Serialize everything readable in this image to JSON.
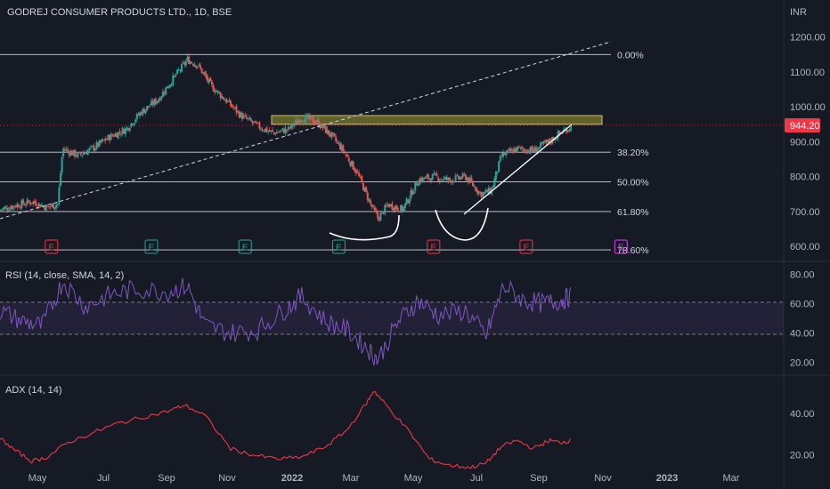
{
  "header": {
    "symbol_title": "GODREJ CONSUMER PRODUCTS LTD., 1D, BSE",
    "currency": "INR"
  },
  "price_axis": {
    "ticks": [
      "1200.00",
      "1100.00",
      "1000.00",
      "900.00",
      "800.00",
      "700.00",
      "600.00"
    ],
    "last_price_label": "944.20",
    "last_price_color": "#f23645"
  },
  "fib_levels": [
    {
      "label": "0.00%",
      "price": 1150
    },
    {
      "label": "38.20%",
      "price": 870
    },
    {
      "label": "50.00%",
      "price": 785
    },
    {
      "label": "61.80%",
      "price": 700
    },
    {
      "label": "78.60%",
      "price": 590
    }
  ],
  "resistance_zone": {
    "top": 975,
    "bottom": 950,
    "color": "#7b7a2d"
  },
  "earnings_markers": [
    {
      "label": "E",
      "date": "2021-04-29",
      "kind": "red"
    },
    {
      "label": "E",
      "date": "2021-08-04",
      "kind": "green"
    },
    {
      "label": "E",
      "date": "2021-11-03",
      "kind": "green"
    },
    {
      "label": "E",
      "date": "2022-02-02",
      "kind": "green"
    },
    {
      "label": "E",
      "date": "2022-05-05",
      "kind": "red"
    },
    {
      "label": "E",
      "date": "2022-08-03",
      "kind": "red"
    },
    {
      "label": "E",
      "date": "2022-11-03",
      "kind": "purple"
    }
  ],
  "rsi": {
    "title": "RSI (14, close, SMA, 14, 2)",
    "ticks": [
      "80.00",
      "60.00",
      "40.00",
      "20.00"
    ],
    "band": [
      40,
      60
    ],
    "line_color": "#7e57c2"
  },
  "adx": {
    "title": "ADX (14, 14)",
    "ticks": [
      "40.00",
      "20.00"
    ],
    "line_color": "#f23645"
  },
  "time_axis": {
    "labels": [
      "May",
      "Jul",
      "Sep",
      "Nov",
      "2022",
      "Mar",
      "May",
      "Jul",
      "Sep",
      "Nov",
      "2023",
      "Mar"
    ]
  },
  "chart_data": [
    {
      "type": "candlestick",
      "title": "GODREJ CONSUMER PRODUCTS LTD., 1D, BSE",
      "ylim": [
        580,
        1240
      ],
      "x_range": [
        "2021-03-10",
        "2023-04-10"
      ],
      "close_path": [
        [
          "2021-03-10",
          705
        ],
        [
          "2021-03-25",
          718
        ],
        [
          "2021-04-10",
          728
        ],
        [
          "2021-04-25",
          712
        ],
        [
          "2021-05-05",
          722
        ],
        [
          "2021-05-10",
          880
        ],
        [
          "2021-05-25",
          860
        ],
        [
          "2021-06-10",
          885
        ],
        [
          "2021-06-25",
          915
        ],
        [
          "2021-07-10",
          935
        ],
        [
          "2021-07-25",
          985
        ],
        [
          "2021-08-10",
          1020
        ],
        [
          "2021-08-25",
          1080
        ],
        [
          "2021-09-08",
          1135
        ],
        [
          "2021-09-18",
          1120
        ],
        [
          "2021-10-01",
          1060
        ],
        [
          "2021-10-15",
          1020
        ],
        [
          "2021-10-30",
          975
        ],
        [
          "2021-11-15",
          945
        ],
        [
          "2021-11-30",
          925
        ],
        [
          "2021-12-15",
          935
        ],
        [
          "2021-12-28",
          970
        ],
        [
          "2022-01-10",
          960
        ],
        [
          "2022-01-25",
          920
        ],
        [
          "2022-02-05",
          880
        ],
        [
          "2022-02-20",
          810
        ],
        [
          "2022-03-05",
          720
        ],
        [
          "2022-03-12",
          680
        ],
        [
          "2022-03-22",
          720
        ],
        [
          "2022-04-05",
          705
        ],
        [
          "2022-04-20",
          790
        ],
        [
          "2022-05-05",
          800
        ],
        [
          "2022-05-20",
          790
        ],
        [
          "2022-06-05",
          800
        ],
        [
          "2022-06-20",
          750
        ],
        [
          "2022-06-30",
          760
        ],
        [
          "2022-07-10",
          860
        ],
        [
          "2022-07-25",
          880
        ],
        [
          "2022-08-10",
          875
        ],
        [
          "2022-08-25",
          900
        ],
        [
          "2022-09-05",
          925
        ],
        [
          "2022-09-16",
          944.2
        ]
      ],
      "last_close": 944.2
    },
    {
      "type": "line",
      "title": "RSI (14, close, SMA, 14, 2)",
      "ylim": [
        15,
        85
      ],
      "points": [
        [
          "2021-03-10",
          55
        ],
        [
          "2021-04-01",
          48
        ],
        [
          "2021-04-20",
          45
        ],
        [
          "2021-05-10",
          75
        ],
        [
          "2021-06-01",
          58
        ],
        [
          "2021-06-25",
          66
        ],
        [
          "2021-07-20",
          70
        ],
        [
          "2021-08-20",
          68
        ],
        [
          "2021-09-08",
          72
        ],
        [
          "2021-09-25",
          45
        ],
        [
          "2021-10-20",
          40
        ],
        [
          "2021-11-15",
          42
        ],
        [
          "2021-12-10",
          55
        ],
        [
          "2021-12-28",
          65
        ],
        [
          "2022-01-20",
          48
        ],
        [
          "2022-02-10",
          42
        ],
        [
          "2022-03-01",
          30
        ],
        [
          "2022-03-12",
          22
        ],
        [
          "2022-04-01",
          48
        ],
        [
          "2022-04-20",
          62
        ],
        [
          "2022-05-10",
          52
        ],
        [
          "2022-06-05",
          55
        ],
        [
          "2022-06-25",
          38
        ],
        [
          "2022-07-12",
          72
        ],
        [
          "2022-08-01",
          62
        ],
        [
          "2022-08-20",
          60
        ],
        [
          "2022-09-05",
          62
        ],
        [
          "2022-09-16",
          65
        ]
      ],
      "band": [
        40,
        60
      ]
    },
    {
      "type": "line",
      "title": "ADX (14, 14)",
      "ylim": [
        10,
        55
      ],
      "points": [
        [
          "2021-03-10",
          28
        ],
        [
          "2021-03-25",
          22
        ],
        [
          "2021-04-10",
          17
        ],
        [
          "2021-04-25",
          19
        ],
        [
          "2021-05-15",
          26
        ],
        [
          "2021-06-10",
          31
        ],
        [
          "2021-07-01",
          35
        ],
        [
          "2021-07-25",
          38
        ],
        [
          "2021-08-20",
          41
        ],
        [
          "2021-09-05",
          44
        ],
        [
          "2021-09-25",
          39
        ],
        [
          "2021-10-20",
          23
        ],
        [
          "2021-11-10",
          20
        ],
        [
          "2021-12-05",
          18
        ],
        [
          "2021-12-28",
          19
        ],
        [
          "2022-01-20",
          24
        ],
        [
          "2022-02-10",
          32
        ],
        [
          "2022-03-01",
          45
        ],
        [
          "2022-03-08",
          51
        ],
        [
          "2022-03-20",
          44
        ],
        [
          "2022-04-10",
          32
        ],
        [
          "2022-05-01",
          18
        ],
        [
          "2022-05-20",
          15
        ],
        [
          "2022-06-10",
          14
        ],
        [
          "2022-06-25",
          16
        ],
        [
          "2022-07-10",
          24
        ],
        [
          "2022-07-25",
          27
        ],
        [
          "2022-08-10",
          23
        ],
        [
          "2022-08-25",
          27
        ],
        [
          "2022-09-05",
          26
        ],
        [
          "2022-09-16",
          27
        ]
      ]
    }
  ]
}
